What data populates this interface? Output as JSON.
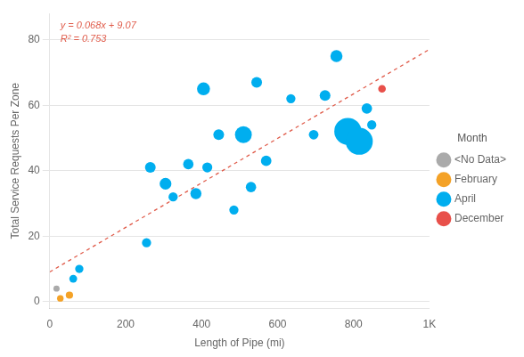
{
  "chart_data": {
    "type": "bubble",
    "xlabel": "Length of Pipe (mi)",
    "ylabel": "Total Service Requests Per Zone",
    "xlim": [
      0,
      1000
    ],
    "ylim": [
      -2,
      88
    ],
    "xticks": [
      0,
      200,
      400,
      600,
      800,
      {
        "value": 1000,
        "label": "1K"
      }
    ],
    "yticks": [
      0,
      20,
      40,
      60,
      80
    ],
    "grid": "y",
    "legend": "right",
    "legend_title": "Month",
    "annotations": [
      {
        "text": "y = 0.068x + 9.07",
        "color": "#e05c4b"
      },
      {
        "text": "R² = 0.753",
        "color": "#e05c4b"
      }
    ],
    "series": [
      {
        "name": "<No Data>",
        "color": "#aaaaaa",
        "x": [
          18
        ],
        "values": [
          4
        ],
        "sizes": [
          25
        ]
      },
      {
        "name": "February",
        "color": "#F4A227",
        "x": [
          28,
          52
        ],
        "values": [
          1,
          2
        ],
        "sizes": [
          28,
          35
        ]
      },
      {
        "name": "April",
        "color": "#00AEEF",
        "x": [
          62,
          78,
          255,
          265,
          305,
          325,
          365,
          385,
          405,
          415,
          445,
          485,
          510,
          530,
          545,
          570,
          635,
          695,
          725,
          755,
          785,
          815,
          835,
          848
        ],
        "values": [
          7,
          10,
          18,
          41,
          36,
          32,
          42,
          33,
          65,
          41,
          51,
          28,
          51,
          35,
          67,
          43,
          62,
          51,
          63,
          75,
          52,
          49,
          59,
          54
        ],
        "sizes": [
          40,
          45,
          55,
          75,
          90,
          55,
          70,
          80,
          110,
          65,
          75,
          55,
          185,
          70,
          75,
          72,
          55,
          60,
          75,
          95,
          480,
          480,
          72,
          55
        ]
      },
      {
        "name": "December",
        "color": "#E8504A",
        "x": [
          875
        ],
        "values": [
          65
        ],
        "sizes": [
          38
        ]
      }
    ],
    "trend_line": {
      "x": [
        0,
        1000
      ],
      "values": [
        9.07,
        77.07
      ],
      "color": "#e05c4b",
      "line_style": "dashed"
    }
  }
}
